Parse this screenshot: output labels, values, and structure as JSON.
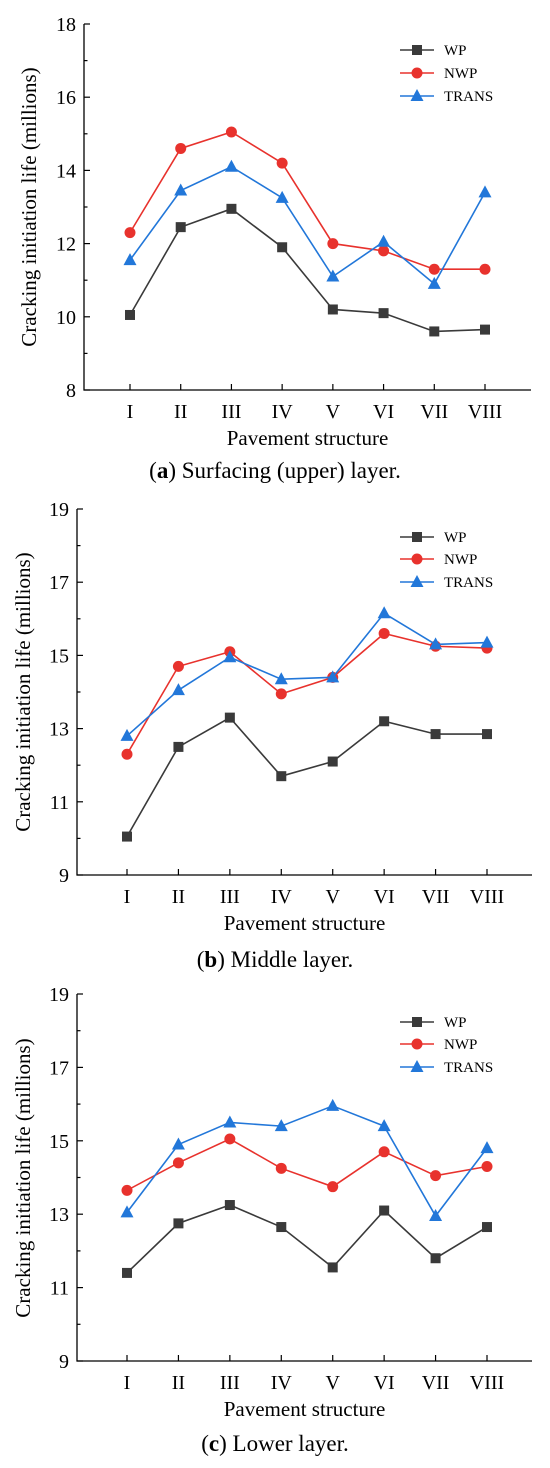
{
  "colors": {
    "WP": "#3a3a3a",
    "NWP": "#e8322d",
    "TRANS": "#2277d9"
  },
  "chart_data": [
    {
      "type": "line",
      "panel_letter": "a",
      "caption_text": " Surfacing (upper) layer.",
      "categories": [
        "I",
        "II",
        "III",
        "IV",
        "V",
        "VI",
        "VII",
        "VIII"
      ],
      "xlabel": "Pavement structure",
      "ylabel": "Cracking initiation life (millions)",
      "ylim": [
        8,
        18
      ],
      "yticks": [
        8,
        10,
        12,
        14,
        16,
        18
      ],
      "grid": false,
      "legend": "top-right",
      "series": [
        {
          "name": "WP",
          "marker": "square",
          "values": [
            10.05,
            12.45,
            12.95,
            11.9,
            10.2,
            10.1,
            9.6,
            9.65
          ]
        },
        {
          "name": "NWP",
          "marker": "circle",
          "values": [
            12.3,
            14.6,
            15.05,
            14.2,
            12.0,
            11.8,
            11.3,
            11.3
          ]
        },
        {
          "name": "TRANS",
          "marker": "triangle",
          "values": [
            11.55,
            13.45,
            14.1,
            13.25,
            11.1,
            12.05,
            10.9,
            13.4
          ]
        }
      ]
    },
    {
      "type": "line",
      "panel_letter": "b",
      "caption_text": " Middle layer.",
      "categories": [
        "I",
        "II",
        "III",
        "IV",
        "V",
        "VI",
        "VII",
        "VIII"
      ],
      "xlabel": "Pavement structure",
      "ylabel": "Cracking initiation life (millions)",
      "ylim": [
        9,
        19
      ],
      "yticks": [
        9,
        11,
        13,
        15,
        17,
        19
      ],
      "grid": false,
      "legend": "top-right",
      "series": [
        {
          "name": "WP",
          "marker": "square",
          "values": [
            10.05,
            12.5,
            13.3,
            11.7,
            12.1,
            13.2,
            12.85,
            12.85
          ]
        },
        {
          "name": "NWP",
          "marker": "circle",
          "values": [
            12.3,
            14.7,
            15.1,
            13.95,
            14.4,
            15.6,
            15.25,
            15.2
          ]
        },
        {
          "name": "TRANS",
          "marker": "triangle",
          "values": [
            12.8,
            14.05,
            14.95,
            14.35,
            14.4,
            16.15,
            15.3,
            15.35
          ]
        }
      ]
    },
    {
      "type": "line",
      "panel_letter": "c",
      "caption_text": " Lower layer.",
      "categories": [
        "I",
        "II",
        "III",
        "IV",
        "V",
        "VI",
        "VII",
        "VIII"
      ],
      "xlabel": "Pavement structure",
      "ylabel": "Cracking initiation life (millions)",
      "ylim": [
        9,
        19
      ],
      "yticks": [
        9,
        11,
        13,
        15,
        17,
        19
      ],
      "grid": false,
      "legend": "top-right",
      "series": [
        {
          "name": "WP",
          "marker": "square",
          "values": [
            11.4,
            12.75,
            13.25,
            12.65,
            11.55,
            13.1,
            11.8,
            12.65
          ]
        },
        {
          "name": "NWP",
          "marker": "circle",
          "values": [
            13.65,
            14.4,
            15.05,
            14.25,
            13.75,
            14.7,
            14.05,
            14.3
          ]
        },
        {
          "name": "TRANS",
          "marker": "triangle",
          "values": [
            13.05,
            14.9,
            15.5,
            15.4,
            15.95,
            15.4,
            12.95,
            14.8
          ]
        }
      ]
    }
  ]
}
